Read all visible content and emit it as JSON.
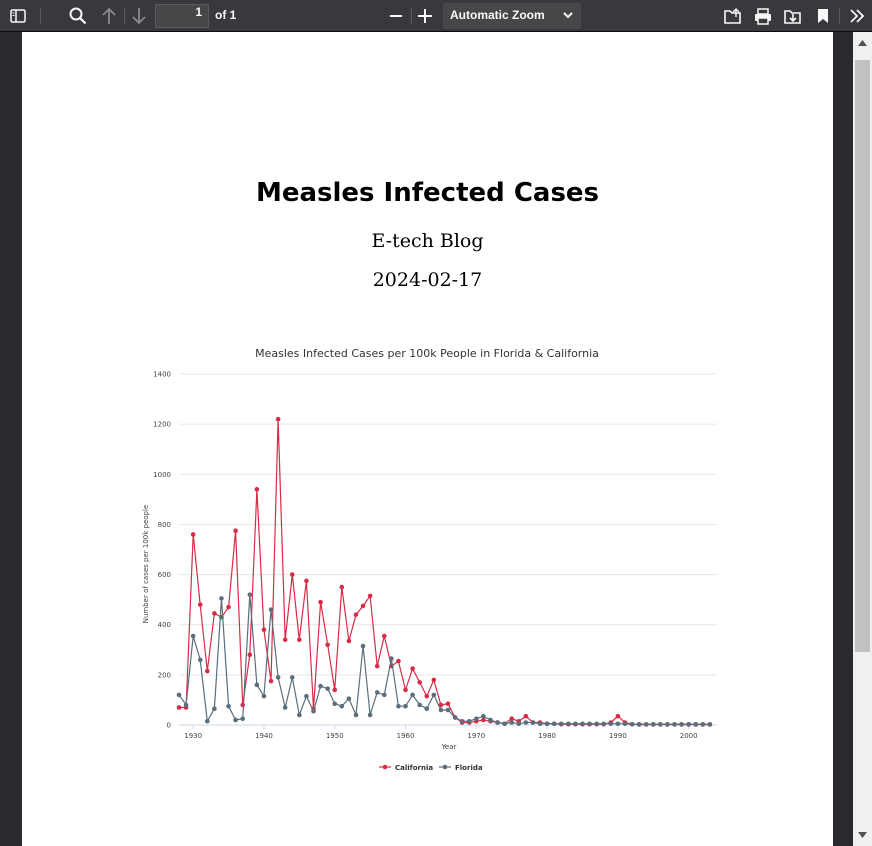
{
  "toolbar": {
    "page_number": "1",
    "page_count_label": "of 1",
    "zoom_label": "Automatic Zoom",
    "icons": [
      "sidebar-toggle-icon",
      "search-icon",
      "arrow-up-icon",
      "arrow-down-icon",
      "minus-icon",
      "plus-icon",
      "chevron-down-icon",
      "open-file-icon",
      "print-icon",
      "download-icon",
      "bookmark-icon",
      "double-chevron-right-icon"
    ]
  },
  "document": {
    "title": "Measles Infected Cases",
    "author": "E-tech Blog",
    "date": "2024-02-17"
  },
  "chart_data": {
    "type": "line",
    "title": "Measles Infected Cases per 100k People in Florida & California",
    "xlabel": "Year",
    "ylabel": "Number of cases per 100k people",
    "xlim": [
      1928,
      2004
    ],
    "ylim": [
      0,
      1400
    ],
    "x_ticks": [
      1930,
      1940,
      1950,
      1960,
      1970,
      1980,
      1990,
      2000
    ],
    "y_ticks": [
      0,
      200,
      400,
      600,
      800,
      1000,
      1200,
      1400
    ],
    "grid": "horizontal",
    "legend": "bottom",
    "series": [
      {
        "name": "California",
        "color": "#d62c45",
        "x": [
          1928,
          1929,
          1930,
          1931,
          1932,
          1933,
          1934,
          1935,
          1936,
          1937,
          1938,
          1939,
          1940,
          1941,
          1942,
          1943,
          1944,
          1945,
          1946,
          1947,
          1948,
          1949,
          1950,
          1951,
          1952,
          1953,
          1954,
          1955,
          1956,
          1957,
          1958,
          1959,
          1960,
          1961,
          1962,
          1963,
          1964,
          1965,
          1966,
          1967,
          1968,
          1969,
          1970,
          1971,
          1972,
          1973,
          1974,
          1975,
          1976,
          1977,
          1978,
          1979,
          1980,
          1981,
          1982,
          1983,
          1984,
          1985,
          1986,
          1987,
          1988,
          1989,
          1990,
          1991,
          1992,
          1993,
          1994,
          1995,
          1996,
          1997,
          1998,
          1999,
          2000,
          2001,
          2002,
          2003
        ],
        "values": [
          70,
          70,
          760,
          480,
          215,
          445,
          430,
          470,
          775,
          80,
          280,
          940,
          380,
          175,
          1220,
          340,
          600,
          340,
          575,
          65,
          490,
          320,
          140,
          550,
          335,
          440,
          475,
          515,
          235,
          355,
          235,
          255,
          140,
          225,
          170,
          115,
          180,
          80,
          85,
          30,
          10,
          10,
          15,
          20,
          15,
          10,
          5,
          25,
          15,
          35,
          10,
          10,
          5,
          5,
          3,
          3,
          3,
          3,
          3,
          3,
          3,
          10,
          35,
          10,
          3,
          2,
          2,
          2,
          2,
          2,
          2,
          2,
          2,
          2,
          2,
          2
        ]
      },
      {
        "name": "Florida",
        "color": "#5a6e7c",
        "x": [
          1928,
          1929,
          1930,
          1931,
          1932,
          1933,
          1934,
          1935,
          1936,
          1937,
          1938,
          1939,
          1940,
          1941,
          1942,
          1943,
          1944,
          1945,
          1946,
          1947,
          1948,
          1949,
          1950,
          1951,
          1952,
          1953,
          1954,
          1955,
          1956,
          1957,
          1958,
          1959,
          1960,
          1961,
          1962,
          1963,
          1964,
          1965,
          1966,
          1967,
          1968,
          1969,
          1970,
          1971,
          1972,
          1973,
          1974,
          1975,
          1976,
          1977,
          1978,
          1979,
          1980,
          1981,
          1982,
          1983,
          1984,
          1985,
          1986,
          1987,
          1988,
          1989,
          1990,
          1991,
          1992,
          1993,
          1994,
          1995,
          1996,
          1997,
          1998,
          1999,
          2000,
          2001,
          2002,
          2003
        ],
        "values": [
          120,
          80,
          355,
          260,
          15,
          65,
          505,
          75,
          20,
          25,
          520,
          160,
          115,
          460,
          190,
          70,
          190,
          40,
          115,
          55,
          155,
          145,
          85,
          75,
          105,
          40,
          315,
          40,
          130,
          120,
          265,
          75,
          75,
          120,
          80,
          65,
          120,
          60,
          60,
          30,
          15,
          15,
          25,
          35,
          20,
          10,
          5,
          10,
          5,
          10,
          10,
          5,
          5,
          5,
          5,
          5,
          5,
          5,
          5,
          5,
          5,
          5,
          5,
          5,
          3,
          3,
          3,
          3,
          3,
          3,
          3,
          3,
          3,
          3,
          3,
          3
        ]
      }
    ]
  }
}
